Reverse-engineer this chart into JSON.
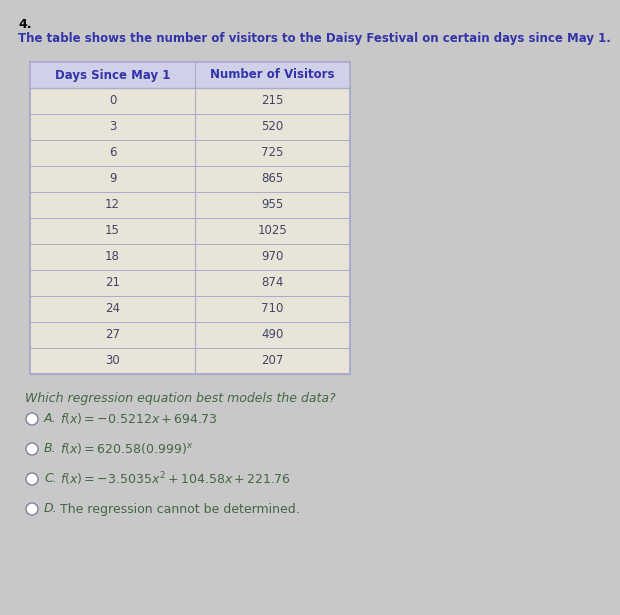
{
  "title_number": "4.",
  "description": "The table shows the number of visitors to the Daisy Festival on certain days since May 1.",
  "col1_header": "Days Since May 1",
  "col2_header": "Number of Visitors",
  "rows": [
    [
      0,
      215
    ],
    [
      3,
      520
    ],
    [
      6,
      725
    ],
    [
      9,
      865
    ],
    [
      12,
      955
    ],
    [
      15,
      1025
    ],
    [
      18,
      970
    ],
    [
      21,
      874
    ],
    [
      24,
      710
    ],
    [
      27,
      490
    ],
    [
      30,
      207
    ]
  ],
  "question": "Which regression equation best models the data?",
  "options": [
    {
      "label": "A.",
      "math": "f(x) = -0.5212x + 694.73"
    },
    {
      "label": "B.",
      "math": "f(x) = 620.58(0.999)^{x}"
    },
    {
      "label": "C.",
      "math": "f(x) = -3.5035x^{2} + 104.58x + 221.76"
    },
    {
      "label": "D.",
      "math": null,
      "plain": "The regression cannot be determined."
    }
  ],
  "bg_color": "#c8c8c8",
  "table_outer_bg": "#e8e8e8",
  "table_row_bg": "#e8e4d8",
  "header_bg": "#d0d0e8",
  "header_text_color": "#3333aa",
  "body_text_color": "#444466",
  "question_color": "#446644",
  "option_color": "#446644",
  "title_color": "#000000",
  "desc_color": "#3333aa",
  "border_color": "#aaaacc"
}
